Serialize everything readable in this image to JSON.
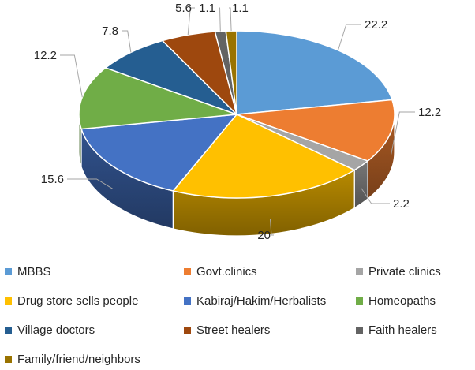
{
  "chart_data": {
    "type": "pie",
    "title": "",
    "categories": [
      "MBBS",
      "Govt.clinics",
      "Private clinics",
      "Drug store sells people",
      "Kabiraj/Hakim/Herbalists",
      "Homeopaths",
      "Village doctors",
      "Street healers",
      "Faith healers",
      "Family/friend/neighbors"
    ],
    "values": [
      22.2,
      12.2,
      2.2,
      20,
      15.6,
      12.2,
      7.8,
      5.6,
      1.1,
      1.1
    ],
    "data_labels": [
      "22.2",
      "12.2",
      "2.2",
      "20",
      "15.6",
      "12.2",
      "7.8",
      "5.6",
      "1.1",
      "1.1"
    ],
    "colors": [
      "#5B9BD5",
      "#ED7D31",
      "#A5A5A5",
      "#FFC000",
      "#4472C4",
      "#70AD47",
      "#255E91",
      "#9E480E",
      "#636363",
      "#997300"
    ],
    "legend_position": "bottom",
    "style": "3d-pie"
  }
}
